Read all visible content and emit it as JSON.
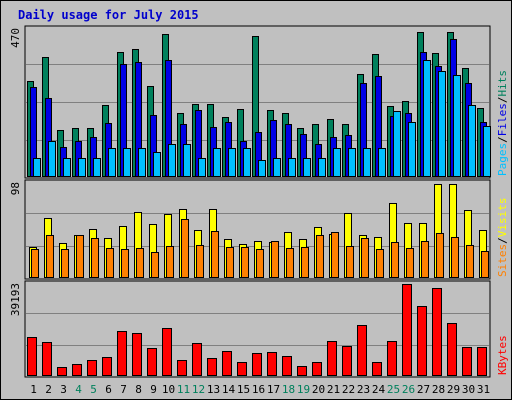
{
  "chart_data": {
    "type": "bar",
    "title": "Daily usage for July 2015",
    "categories": [
      "1",
      "2",
      "3",
      "4",
      "5",
      "6",
      "7",
      "8",
      "9",
      "10",
      "11",
      "12",
      "13",
      "14",
      "15",
      "16",
      "17",
      "18",
      "19",
      "20",
      "21",
      "22",
      "23",
      "24",
      "25",
      "26",
      "27",
      "28",
      "29",
      "30",
      "31"
    ],
    "weekend_days": [
      "4",
      "5",
      "11",
      "12",
      "18",
      "19",
      "25",
      "26"
    ],
    "colors": {
      "hits": "#00805c",
      "files": "#0000e6",
      "pages": "#00c0ff",
      "visits": "#ffff00",
      "sites": "#ff8000",
      "kbytes": "#ff0000",
      "title": "#0000cc",
      "weekend_label": "#00805c",
      "weekday_label": "#000000",
      "grid": "#808080",
      "plot_bg": "#c0c0c0"
    },
    "panels": [
      {
        "id": "hits-files-pages",
        "ymax_label": "470",
        "ylim": [
          0,
          470
        ],
        "legend": [
          {
            "text": "Pages",
            "color": "#00c0ff"
          },
          {
            "text": "/",
            "color": "#000000"
          },
          {
            "text": "Files",
            "color": "#0000e6"
          },
          {
            "text": "/",
            "color": "#000000"
          },
          {
            "text": "Hits",
            "color": "#00805c"
          }
        ],
        "series": [
          {
            "name": "Hits",
            "color": "#00805c",
            "values": [
              306,
              382,
              148,
              156,
              156,
              227,
              400,
              409,
              289,
              456,
              203,
              233,
              233,
              190,
              215,
              451,
              212,
              202,
              153,
              169,
              185,
              166,
              327,
              392,
              225,
              243,
              462,
              395,
              465,
              347,
              220
            ]
          },
          {
            "name": "Files",
            "color": "#0000e6",
            "values": [
              287,
              251,
              94,
              114,
              124,
              172,
              362,
              367,
              195,
              373,
              168,
              211,
              159,
              174,
              113,
              141,
              181,
              167,
              134,
              103,
              126,
              131,
              300,
              322,
              194,
              203,
              398,
              353,
              440,
              300,
              174
            ]
          },
          {
            "name": "Pages",
            "color": "#00c0ff",
            "values": [
              57,
              113,
              57,
              57,
              57,
              90,
              90,
              90,
              77,
              103,
              103,
              57,
              90,
              90,
              90,
              51,
              57,
              57,
              57,
              57,
              90,
              90,
              90,
              90,
              209,
              174,
              372,
              339,
              324,
              229,
              160
            ]
          }
        ]
      },
      {
        "id": "visits-sites",
        "ymax_label": "98",
        "ylim": [
          0,
          98
        ],
        "legend": [
          {
            "text": "Sites",
            "color": "#ff8000"
          },
          {
            "text": "/",
            "color": "#000000"
          },
          {
            "text": "Visits",
            "color": "#ffff00"
          }
        ],
        "series": [
          {
            "name": "Visits",
            "color": "#ffff00",
            "values": [
              32,
              62,
              36,
              44,
              51,
              41,
              54,
              68,
              56,
              66,
              72,
              50,
              72,
              40,
              35,
              38,
              37,
              47,
              40,
              53,
              45,
              67,
              44,
              42,
              78,
              57,
              57,
              98,
              98,
              71,
              50
            ]
          },
          {
            "name": "Sites",
            "color": "#ff8000",
            "values": [
              30,
              44,
              30,
              44,
              41,
              31,
              30,
              31,
              26,
              33,
              61,
              34,
              48,
              32,
              32,
              30,
              38,
              31,
              32,
              44,
              47,
              33,
              41,
              30,
              37,
              31,
              38,
              46,
              42,
              34,
              27
            ]
          }
        ]
      },
      {
        "id": "kbytes",
        "ymax_label": "39193",
        "ylim": [
          0,
          39193
        ],
        "legend": [
          {
            "text": "KBytes",
            "color": "#ff0000"
          }
        ],
        "series": [
          {
            "name": "KBytes",
            "color": "#ff0000",
            "values": [
              16575,
              14240,
              3388,
              4671,
              6263,
              7785,
              19013,
              18185,
              11600,
              20425,
              6620,
              13765,
              7436,
              10312,
              5807,
              9547,
              10068,
              8140,
              3954,
              5626,
              14555,
              12296,
              21670,
              5452,
              14785,
              39193,
              29637,
              37539,
              22596,
              12223,
              11900
            ]
          }
        ]
      }
    ]
  }
}
